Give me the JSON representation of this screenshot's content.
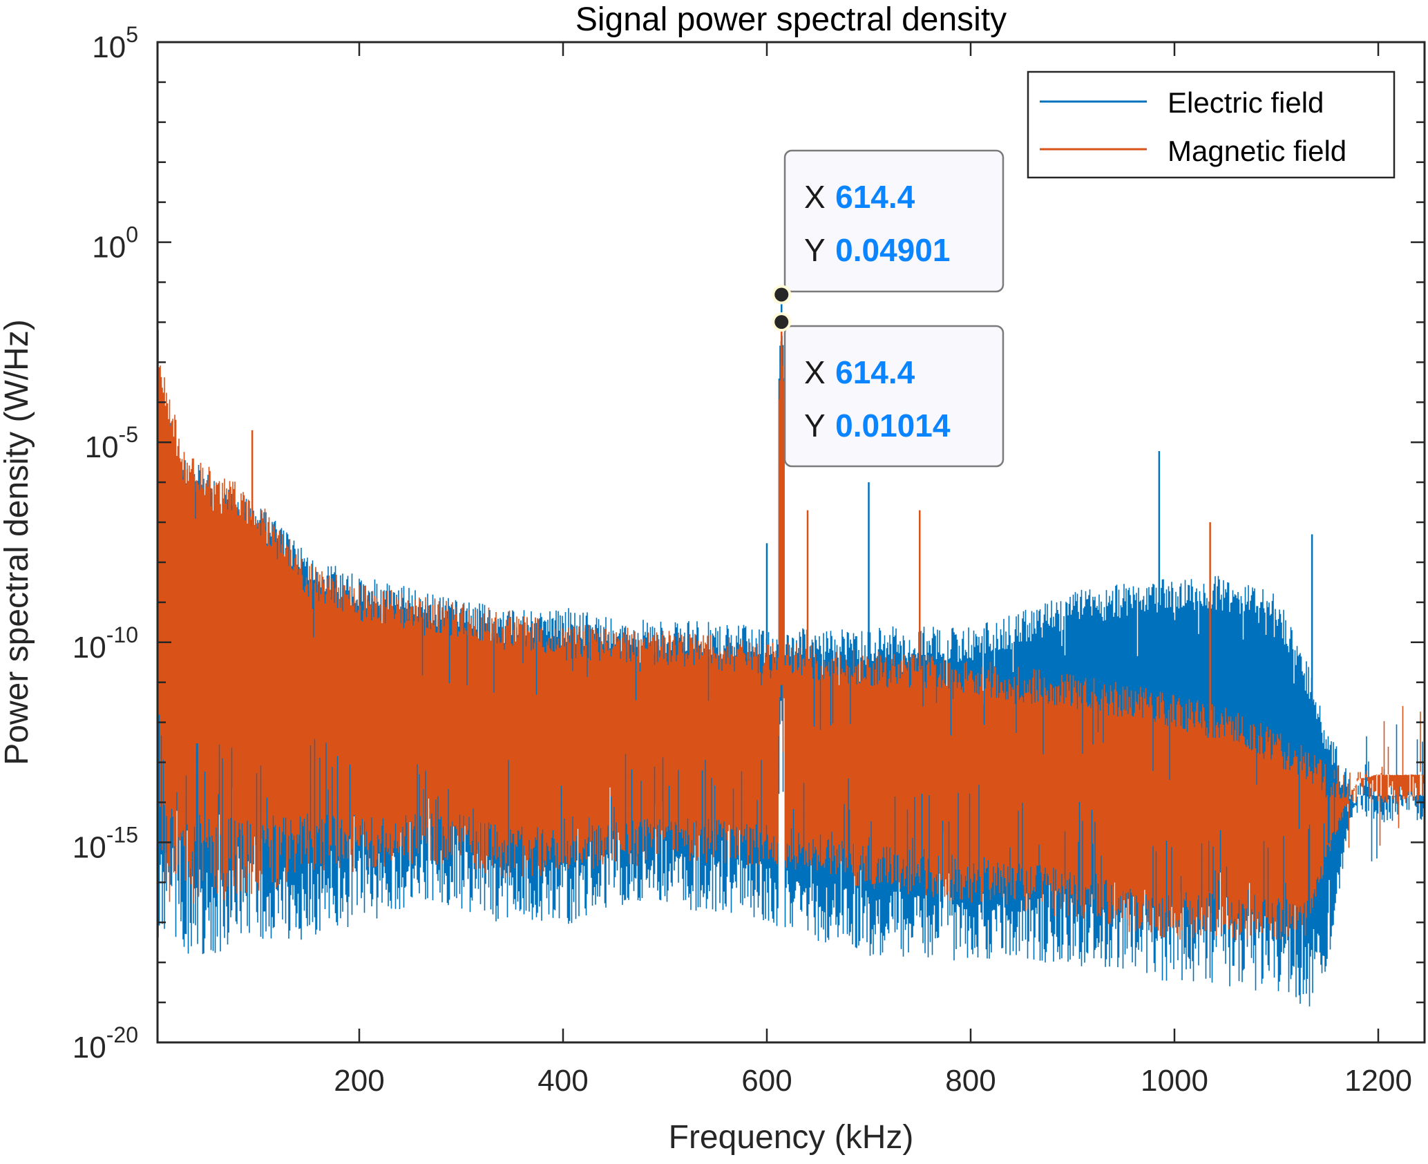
{
  "chart_data": {
    "type": "line",
    "title": "Signal power spectral density",
    "xlabel": "Frequency (kHz)",
    "ylabel": "Power spectral density (W/Hz)",
    "xlim": [
      0,
      1245
    ],
    "ylim": [
      1e-20,
      100000.0
    ],
    "yscale": "log",
    "grid": false,
    "x_ticks": [
      200,
      400,
      600,
      800,
      1000,
      1200
    ],
    "x_tick_labels": [
      "200",
      "400",
      "600",
      "800",
      "1000",
      "1200"
    ],
    "y_ticks_exponents": [
      5,
      0,
      -5,
      -10,
      -15,
      -20
    ],
    "y_tick_labels": [
      {
        "base": "10",
        "exp": "5"
      },
      {
        "base": "10",
        "exp": "0"
      },
      {
        "base": "10",
        "exp": "-5"
      },
      {
        "base": "10",
        "exp": "-10"
      },
      {
        "base": "10",
        "exp": "-15"
      },
      {
        "base": "10",
        "exp": "-20"
      }
    ],
    "legend": {
      "position": "top-right",
      "entries": [
        {
          "label": "Electric field",
          "color": "#0072BD"
        },
        {
          "label": "Magnetic field",
          "color": "#D95319"
        }
      ]
    },
    "series": [
      {
        "name": "Electric field",
        "color": "#0072BD",
        "envelope_log10": {
          "x": [
            2,
            20,
            60,
            100,
            150,
            200,
            250,
            300,
            350,
            400,
            450,
            500,
            550,
            600,
            614.4,
            630,
            700,
            800,
            850,
            900,
            950,
            1000,
            1050,
            1100,
            1130,
            1150,
            1170,
            1180,
            1200,
            1245
          ],
          "upper": [
            -3,
            -5,
            -6,
            -6.5,
            -7.8,
            -8.3,
            -8.6,
            -8.9,
            -9.2,
            -9.1,
            -9.4,
            -9.4,
            -9.5,
            -9.6,
            -1.31,
            -9.6,
            -9.6,
            -9.6,
            -9.2,
            -8.7,
            -8.5,
            -8.4,
            -8.3,
            -8.8,
            -10.4,
            -12.0,
            -13.2,
            -13.5,
            -13.6,
            -13.6
          ],
          "lower": [
            -14.5,
            -15.2,
            -15.5,
            -15.3,
            -15.5,
            -15.4,
            -15.0,
            -15.2,
            -15.5,
            -15.5,
            -15.2,
            -15.2,
            -15.3,
            -15.5,
            -11,
            -15.8,
            -16.2,
            -16.3,
            -16.2,
            -16.2,
            -16.3,
            -16.5,
            -16.6,
            -16.8,
            -17.5,
            -17.0,
            -14.5,
            -13.8,
            -13.8,
            -13.8
          ],
          "spike_peaks": [
            {
              "x": 614.4,
              "y": 0.04901
            },
            {
              "x": 600,
              "y": 3e-08
            },
            {
              "x": 700,
              "y": 1e-06
            },
            {
              "x": 985,
              "y": 6e-06
            },
            {
              "x": 1135,
              "y": 5e-08
            }
          ]
        }
      },
      {
        "name": "Magnetic field",
        "color": "#D95319",
        "envelope_log10": {
          "x": [
            2,
            10,
            30,
            60,
            100,
            150,
            200,
            250,
            300,
            350,
            400,
            450,
            500,
            550,
            600,
            614.4,
            630,
            700,
            800,
            850,
            900,
            950,
            1000,
            1050,
            1100,
            1130,
            1150,
            1180,
            1200,
            1245
          ],
          "upper": [
            -2,
            -3.5,
            -5.3,
            -5.6,
            -6.4,
            -8.0,
            -8.5,
            -8.8,
            -9.0,
            -9.2,
            -9.5,
            -9.6,
            -9.7,
            -9.8,
            -10.0,
            -2.0,
            -10.0,
            -10.2,
            -10.4,
            -10.6,
            -10.8,
            -11.0,
            -11.3,
            -11.6,
            -12.2,
            -12.6,
            -13.0,
            -13.2,
            -13.2,
            -13.2
          ],
          "lower": [
            -13.5,
            -14.0,
            -14.3,
            -14.3,
            -14.4,
            -14.2,
            -14.3,
            -14.2,
            -14.3,
            -14.6,
            -14.6,
            -14.5,
            -14.3,
            -14.4,
            -14.5,
            -10.5,
            -14.6,
            -15.0,
            -15.3,
            -15.5,
            -15.7,
            -16.0,
            -16.2,
            -16.3,
            -16.4,
            -16.4,
            -15.0,
            -13.4,
            -13.3,
            -13.3
          ],
          "spike_peaks": [
            {
              "x": 614.4,
              "y": 0.01014
            },
            {
              "x": 2,
              "y": 0.01
            },
            {
              "x": 95,
              "y": 2e-05
            },
            {
              "x": 640,
              "y": 2e-07
            },
            {
              "x": 750,
              "y": 2e-07
            },
            {
              "x": 1035,
              "y": 1e-07
            }
          ]
        }
      }
    ],
    "datatips": [
      {
        "series": "Electric field",
        "x_label": "X",
        "x_value": "614.4",
        "y_label": "Y",
        "y_value": "0.04901",
        "x": 614.4,
        "y": 0.04901
      },
      {
        "series": "Magnetic field",
        "x_label": "X",
        "x_value": "614.4",
        "y_label": "Y",
        "y_value": "0.01014",
        "x": 614.4,
        "y": 0.01014
      }
    ]
  }
}
